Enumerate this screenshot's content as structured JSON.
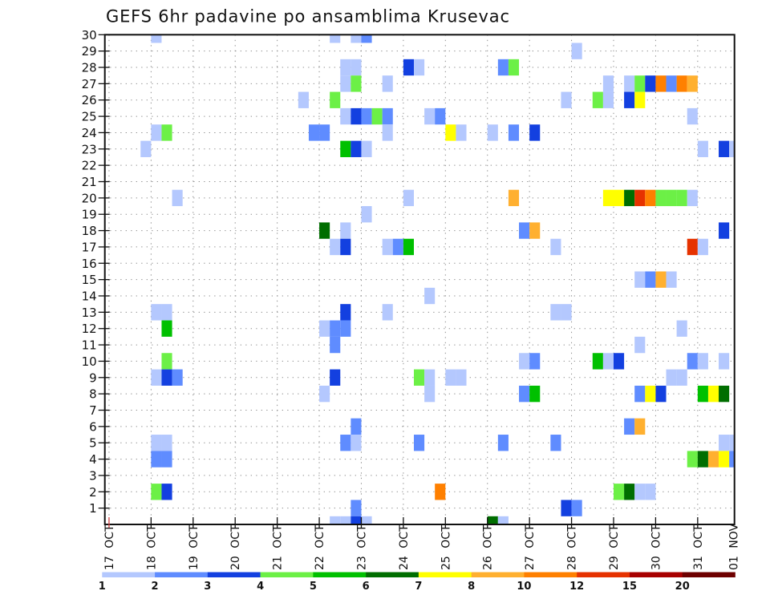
{
  "chart_data": {
    "type": "heatmap",
    "title": "GEFS 6hr padavine po ansamblima Krusevac",
    "grid": true,
    "steps_per_day": 4,
    "xlim_steps": [
      -0.4,
      59.5
    ],
    "ylim": [
      0,
      30
    ],
    "x_tick_labels": [
      "17 OCT",
      "18 OCT",
      "19 OCT",
      "20 OCT",
      "21 OCT",
      "22 OCT",
      "23 OCT",
      "24 OCT",
      "25 OCT",
      "26 OCT",
      "27 OCT",
      "28 OCT",
      "29 OCT",
      "30 OCT",
      "31 OCT",
      "01 NOV"
    ],
    "y_tick_labels": [
      "1",
      "2",
      "3",
      "4",
      "5",
      "6",
      "7",
      "8",
      "9",
      "10",
      "11",
      "12",
      "13",
      "14",
      "15",
      "16",
      "17",
      "18",
      "19",
      "20",
      "21",
      "22",
      "23",
      "24",
      "25",
      "26",
      "27",
      "28",
      "29",
      "30"
    ],
    "legend": {
      "placement": "bottom",
      "levels": [
        "1",
        "2",
        "3",
        "4",
        "5",
        "6",
        "7",
        "8",
        "10",
        "12",
        "15",
        "20"
      ],
      "colors": [
        "#b4c8fe",
        "#5f8cff",
        "#1340e0",
        "#6cf046",
        "#00c000",
        "#006e00",
        "#ffff00",
        "#ffb030",
        "#ff8000",
        "#e63200",
        "#a80000",
        "#6e0000"
      ]
    },
    "cells_format": [
      "member",
      "step",
      "level_index"
    ],
    "cells": [
      [
        30,
        4,
        0
      ],
      [
        30,
        21,
        0
      ],
      [
        30,
        23,
        0
      ],
      [
        30,
        24,
        1
      ],
      [
        29,
        44,
        0
      ],
      [
        28,
        22,
        0
      ],
      [
        28,
        23,
        0
      ],
      [
        28,
        28,
        2
      ],
      [
        28,
        29,
        0
      ],
      [
        28,
        37,
        1
      ],
      [
        28,
        38,
        3
      ],
      [
        27,
        22,
        0
      ],
      [
        27,
        23,
        3
      ],
      [
        27,
        26,
        0
      ],
      [
        27,
        47,
        0
      ],
      [
        27,
        49,
        0
      ],
      [
        27,
        50,
        3
      ],
      [
        27,
        51,
        2
      ],
      [
        27,
        52,
        8
      ],
      [
        27,
        53,
        1
      ],
      [
        27,
        54,
        8
      ],
      [
        27,
        55,
        7
      ],
      [
        26,
        18,
        0
      ],
      [
        26,
        21,
        3
      ],
      [
        26,
        43,
        0
      ],
      [
        26,
        46,
        3
      ],
      [
        26,
        47,
        0
      ],
      [
        26,
        49,
        2
      ],
      [
        26,
        50,
        6
      ],
      [
        25,
        22,
        0
      ],
      [
        25,
        23,
        2
      ],
      [
        25,
        24,
        1
      ],
      [
        25,
        25,
        3
      ],
      [
        25,
        26,
        1
      ],
      [
        25,
        30,
        0
      ],
      [
        25,
        31,
        1
      ],
      [
        25,
        55,
        0
      ],
      [
        24,
        4,
        0
      ],
      [
        24,
        5,
        3
      ],
      [
        24,
        19,
        1
      ],
      [
        24,
        20,
        1
      ],
      [
        24,
        26,
        0
      ],
      [
        24,
        32,
        6
      ],
      [
        24,
        33,
        0
      ],
      [
        24,
        36,
        0
      ],
      [
        24,
        38,
        1
      ],
      [
        24,
        40,
        2
      ],
      [
        23,
        3,
        0
      ],
      [
        23,
        22,
        4
      ],
      [
        23,
        23,
        2
      ],
      [
        23,
        24,
        0
      ],
      [
        23,
        56,
        0
      ],
      [
        23,
        58,
        2
      ],
      [
        23,
        59,
        0
      ],
      [
        20,
        6,
        0
      ],
      [
        20,
        28,
        0
      ],
      [
        20,
        38,
        7
      ],
      [
        20,
        47,
        6
      ],
      [
        20,
        48,
        6
      ],
      [
        20,
        49,
        5
      ],
      [
        20,
        50,
        9
      ],
      [
        20,
        51,
        8
      ],
      [
        20,
        52,
        3
      ],
      [
        20,
        53,
        3
      ],
      [
        20,
        54,
        3
      ],
      [
        20,
        55,
        0
      ],
      [
        19,
        24,
        0
      ],
      [
        18,
        20,
        5
      ],
      [
        18,
        22,
        0
      ],
      [
        18,
        39,
        1
      ],
      [
        18,
        40,
        7
      ],
      [
        18,
        58,
        2
      ],
      [
        17,
        21,
        0
      ],
      [
        17,
        22,
        2
      ],
      [
        17,
        26,
        0
      ],
      [
        17,
        27,
        1
      ],
      [
        17,
        28,
        4
      ],
      [
        17,
        42,
        0
      ],
      [
        17,
        55,
        9
      ],
      [
        17,
        56,
        0
      ],
      [
        15,
        50,
        0
      ],
      [
        15,
        51,
        1
      ],
      [
        15,
        52,
        7
      ],
      [
        15,
        53,
        0
      ],
      [
        14,
        30,
        0
      ],
      [
        13,
        4,
        0
      ],
      [
        13,
        5,
        0
      ],
      [
        13,
        22,
        2
      ],
      [
        13,
        26,
        0
      ],
      [
        13,
        42,
        0
      ],
      [
        13,
        43,
        0
      ],
      [
        12,
        5,
        4
      ],
      [
        12,
        20,
        0
      ],
      [
        12,
        21,
        1
      ],
      [
        12,
        22,
        1
      ],
      [
        12,
        54,
        0
      ],
      [
        11,
        21,
        1
      ],
      [
        11,
        50,
        0
      ],
      [
        10,
        5,
        3
      ],
      [
        10,
        39,
        0
      ],
      [
        10,
        40,
        1
      ],
      [
        10,
        46,
        4
      ],
      [
        10,
        47,
        0
      ],
      [
        10,
        48,
        2
      ],
      [
        10,
        55,
        1
      ],
      [
        10,
        56,
        0
      ],
      [
        10,
        58,
        0
      ],
      [
        9,
        4,
        0
      ],
      [
        9,
        5,
        2
      ],
      [
        9,
        6,
        1
      ],
      [
        9,
        21,
        2
      ],
      [
        9,
        29,
        3
      ],
      [
        9,
        30,
        0
      ],
      [
        9,
        32,
        0
      ],
      [
        9,
        33,
        0
      ],
      [
        9,
        53,
        0
      ],
      [
        9,
        54,
        0
      ],
      [
        8,
        20,
        0
      ],
      [
        8,
        30,
        0
      ],
      [
        8,
        39,
        1
      ],
      [
        8,
        40,
        4
      ],
      [
        8,
        50,
        1
      ],
      [
        8,
        51,
        6
      ],
      [
        8,
        52,
        2
      ],
      [
        8,
        56,
        4
      ],
      [
        8,
        57,
        6
      ],
      [
        8,
        58,
        5
      ],
      [
        6,
        23,
        1
      ],
      [
        6,
        49,
        1
      ],
      [
        6,
        50,
        7
      ],
      [
        5,
        4,
        0
      ],
      [
        5,
        5,
        0
      ],
      [
        5,
        22,
        1
      ],
      [
        5,
        23,
        0
      ],
      [
        5,
        29,
        1
      ],
      [
        5,
        37,
        1
      ],
      [
        5,
        42,
        1
      ],
      [
        5,
        58,
        0
      ],
      [
        5,
        59,
        0
      ],
      [
        4,
        4,
        1
      ],
      [
        4,
        5,
        1
      ],
      [
        4,
        55,
        3
      ],
      [
        4,
        56,
        5
      ],
      [
        4,
        57,
        7
      ],
      [
        4,
        58,
        6
      ],
      [
        4,
        59,
        1
      ],
      [
        2,
        4,
        3
      ],
      [
        2,
        5,
        2
      ],
      [
        2,
        31,
        8
      ],
      [
        2,
        48,
        3
      ],
      [
        2,
        49,
        5
      ],
      [
        2,
        50,
        0
      ],
      [
        2,
        51,
        0
      ],
      [
        1,
        23,
        1
      ],
      [
        1,
        43,
        2
      ],
      [
        1,
        44,
        1
      ],
      [
        0,
        21,
        0
      ],
      [
        0,
        22,
        0
      ],
      [
        0,
        23,
        2
      ],
      [
        0,
        24,
        0
      ],
      [
        0,
        36,
        5
      ],
      [
        0,
        37,
        0
      ]
    ]
  }
}
